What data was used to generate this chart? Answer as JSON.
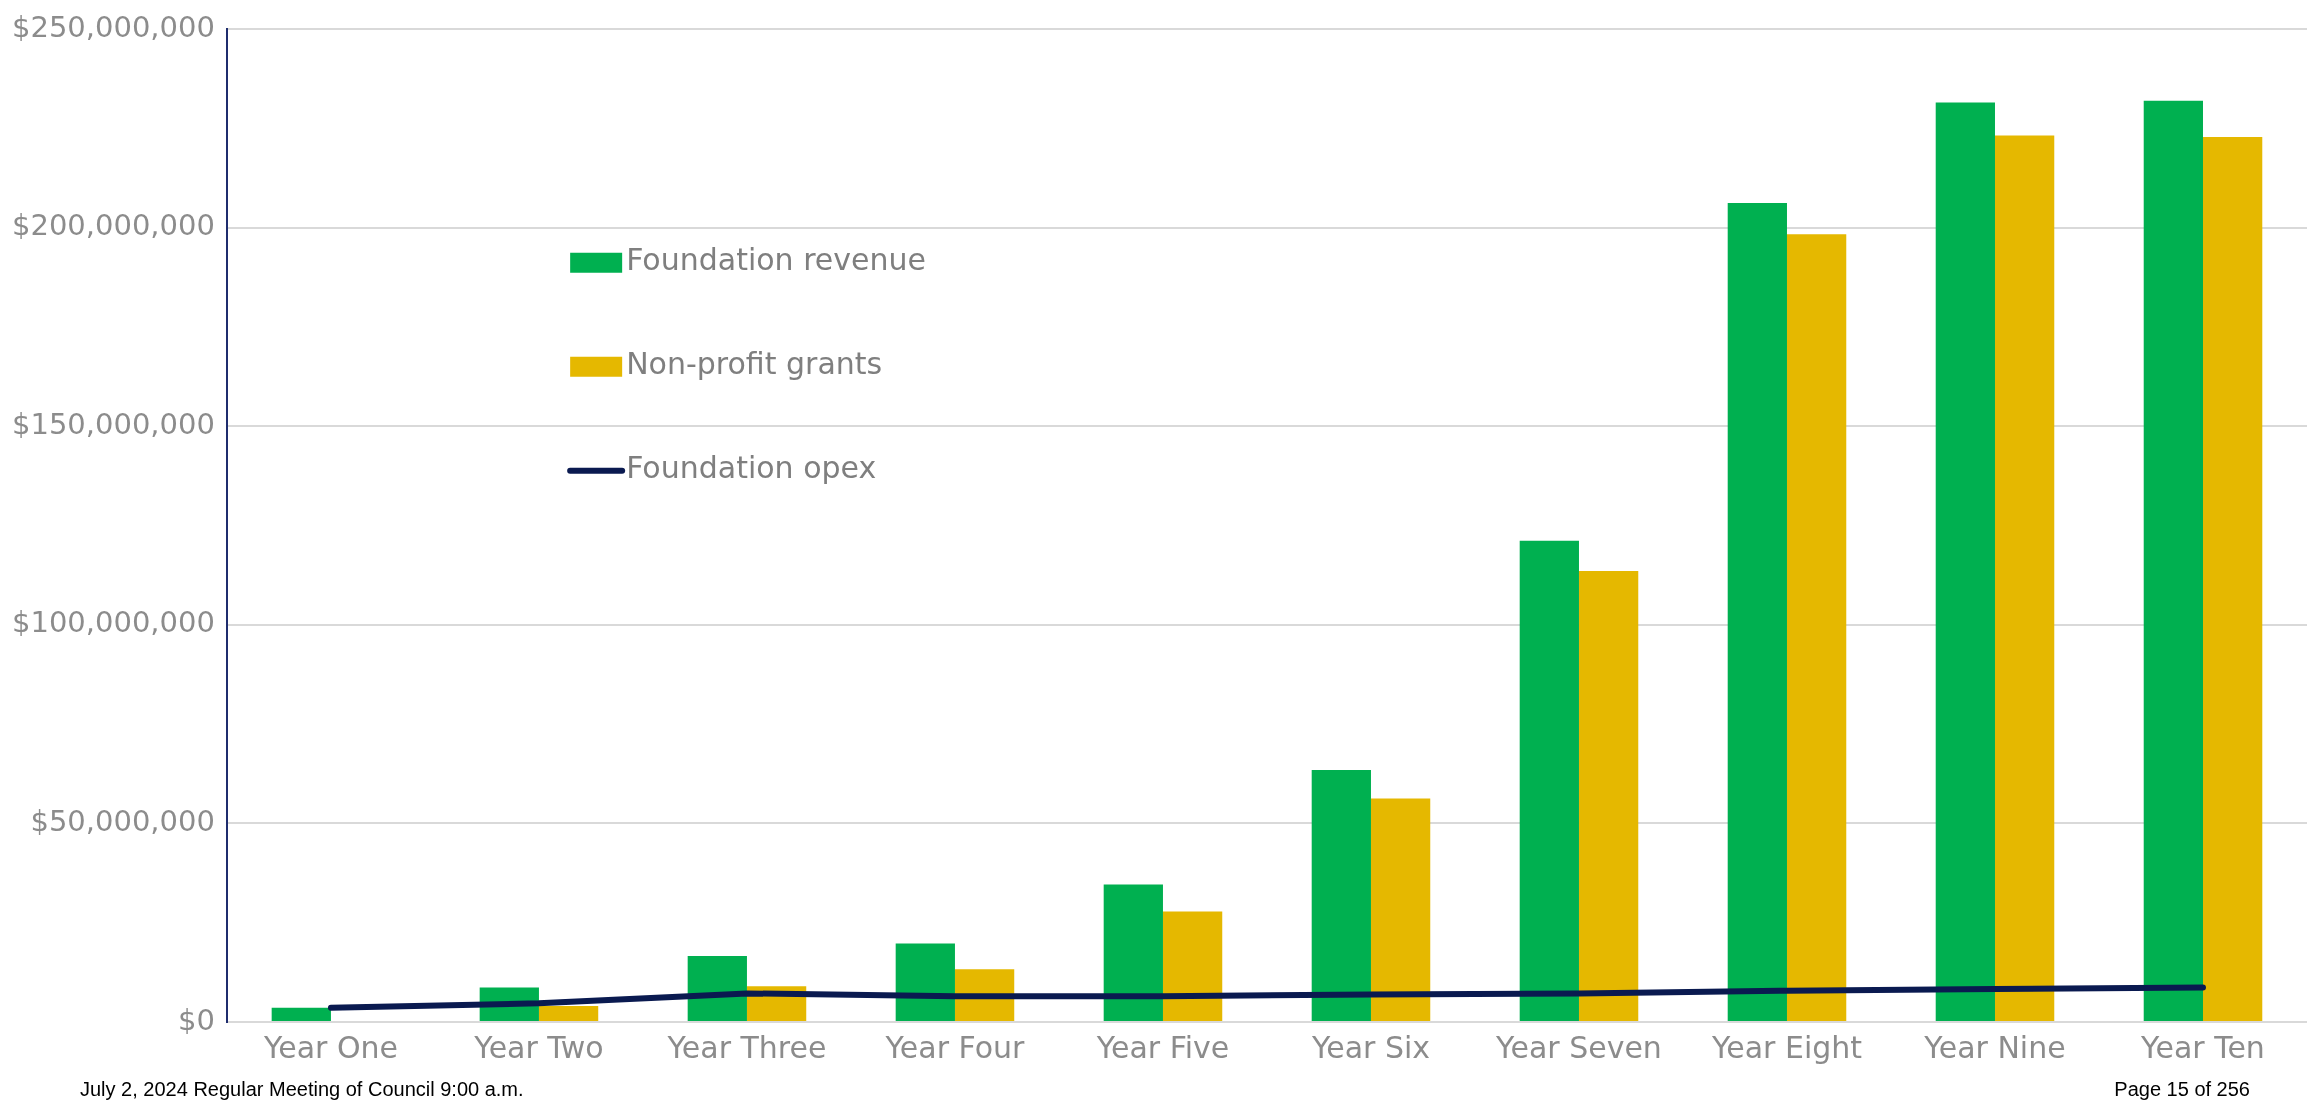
{
  "chart_data": {
    "type": "bar",
    "categories": [
      "Year One",
      "Year Two",
      "Year Three",
      "Year Four",
      "Year Five",
      "Year Six",
      "Year Seven",
      "Year Eight",
      "Year Nine",
      "Year Ten"
    ],
    "series": [
      {
        "name": "Foundation revenue",
        "color": "#00b050",
        "values": [
          3600000.0,
          8700000.0,
          16600000.0,
          19800000.0,
          34600000.0,
          63500000.0,
          121200000.0,
          206300000.0,
          231600000.0,
          232000000.0
        ]
      },
      {
        "name": "Non-profit grants",
        "color": "#e5b800",
        "values": [
          null,
          4000000.0,
          9000000.0,
          13300000.0,
          27800000.0,
          56300000.0,
          113600000.0,
          198400000.0,
          223300000.0,
          222900000.0
        ]
      },
      {
        "name": "Foundation opex",
        "type": "line",
        "color": "#0a1a50",
        "values": [
          3600000.0,
          4700000.0,
          7200000.0,
          6500000.0,
          6500000.0,
          6900000.0,
          7200000.0,
          7900000.0,
          8300000.0,
          8700000.0
        ]
      }
    ],
    "ylim": [
      0,
      250000000
    ],
    "yticks": [
      {
        "value": 0,
        "label": "$0"
      },
      {
        "value": 50000000,
        "label": "$50,000,000"
      },
      {
        "value": 100000000,
        "label": "$100,000,000"
      },
      {
        "value": 150000000,
        "label": "$150,000,000"
      },
      {
        "value": 200000000,
        "label": "$200,000,000"
      },
      {
        "value": 250000000,
        "label": "$250,000,000"
      }
    ],
    "grid": "y",
    "legend": "top left",
    "marker": "none",
    "annotations": [
      "July 2, 2024 Regular Meeting of Council 9:00 a.m.",
      "Page 15 of 256"
    ]
  }
}
